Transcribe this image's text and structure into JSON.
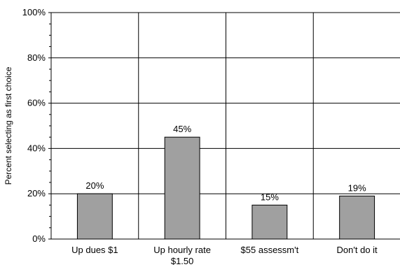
{
  "chart_data": {
    "type": "bar",
    "ylabel": "Percent selecting as first choice",
    "xlabel": "",
    "title": "",
    "ylim": [
      0,
      100
    ],
    "yticks": [
      "0%",
      "20%",
      "40%",
      "60%",
      "80%",
      "100%"
    ],
    "ytick_values": [
      0,
      20,
      40,
      60,
      80,
      100
    ],
    "categories": [
      "Up dues $1",
      "Up hourly rate $1.50",
      "$55 assessm't",
      "Don't do it"
    ],
    "category_lines": [
      [
        "Up dues $1"
      ],
      [
        "Up hourly rate",
        "$1.50"
      ],
      [
        "$55 assessm't"
      ],
      [
        "Don't do it"
      ]
    ],
    "values": [
      20,
      45,
      15,
      19
    ],
    "data_labels": [
      "20%",
      "45%",
      "15%",
      "19%"
    ],
    "grid": true,
    "bar_color": "#a0a0a0"
  }
}
